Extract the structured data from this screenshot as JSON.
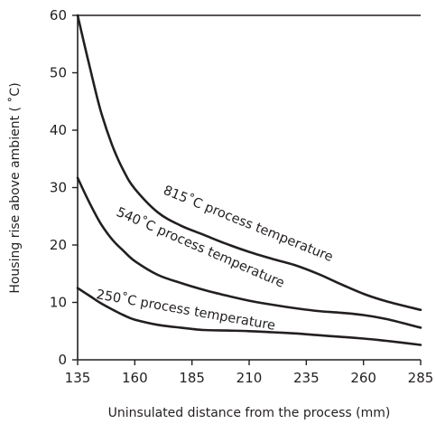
{
  "chart_data": {
    "type": "line",
    "xlabel": "Uninsulated distance from the process (mm)",
    "ylabel": "Housing rise above ambient ( ˚C)",
    "xlim": [
      135,
      285
    ],
    "ylim": [
      0,
      60
    ],
    "x_ticks": [
      135,
      160,
      185,
      210,
      235,
      260,
      285
    ],
    "y_ticks": [
      0,
      10,
      20,
      30,
      40,
      50,
      60
    ],
    "x_tick_labels": [
      "135",
      "160",
      "185",
      "210",
      "235",
      "260",
      "285"
    ],
    "y_tick_labels": [
      "0",
      "10",
      "20",
      "30",
      "40",
      "50",
      "60"
    ],
    "grid": false,
    "legend": "none",
    "series": [
      {
        "name": "815˚C process temperature",
        "x": [
          135,
          140,
          145,
          150,
          155,
          160,
          170,
          180,
          190,
          200,
          210,
          220,
          230,
          240,
          250,
          260,
          270,
          285
        ],
        "y": [
          60,
          51.5,
          43.5,
          37.5,
          33,
          29.8,
          25.7,
          23.4,
          21.8,
          20.2,
          18.8,
          17.6,
          16.5,
          15.0,
          13.2,
          11.5,
          10.2,
          8.7
        ]
      },
      {
        "name": "540˚C process temperature",
        "x": [
          135,
          140,
          145,
          150,
          155,
          160,
          170,
          180,
          190,
          200,
          210,
          220,
          230,
          240,
          250,
          260,
          270,
          285
        ],
        "y": [
          31.7,
          27.5,
          23.8,
          21.0,
          19.0,
          17.2,
          14.8,
          13.4,
          12.2,
          11.2,
          10.3,
          9.6,
          9.0,
          8.5,
          8.2,
          7.8,
          7.1,
          5.6
        ]
      },
      {
        "name": "250˚C process temperature",
        "x": [
          135,
          140,
          145,
          150,
          155,
          160,
          170,
          180,
          190,
          200,
          210,
          220,
          230,
          240,
          250,
          260,
          270,
          285
        ],
        "y": [
          12.5,
          11.2,
          9.9,
          8.8,
          7.8,
          7.0,
          6.1,
          5.6,
          5.2,
          5.1,
          5.0,
          4.8,
          4.6,
          4.3,
          4.0,
          3.7,
          3.3,
          2.6
        ]
      }
    ]
  }
}
